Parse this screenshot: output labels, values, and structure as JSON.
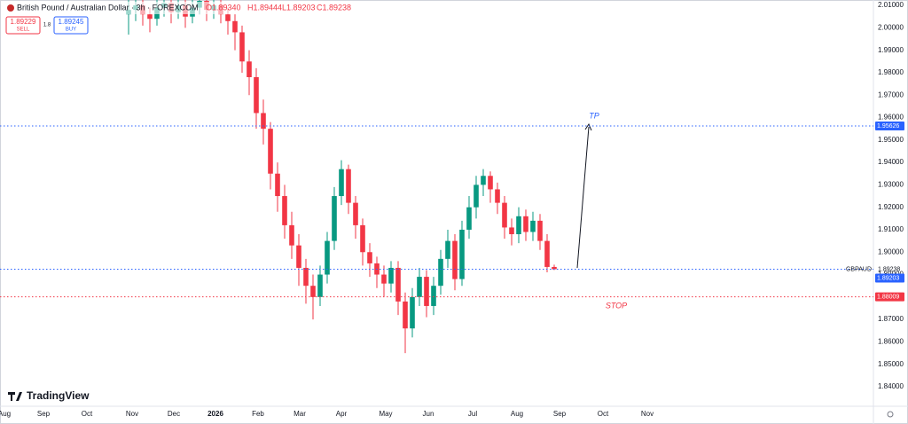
{
  "header": {
    "symbol": "British Pound / Australian Dollar · 3h · FOREXCOM",
    "ohlc": [
      "O1.89340",
      "H1.89444",
      "L1.89203",
      "C1.89238"
    ]
  },
  "trade_panel": {
    "sell_price": "1.89229",
    "sell_label": "SELL",
    "spread": "1.8",
    "buy_price": "1.89245",
    "buy_label": "BUY"
  },
  "branding": "TradingView",
  "chart_data": {
    "type": "candlestick",
    "categories": [
      null,
      null,
      null,
      null,
      null,
      null,
      null,
      null,
      null,
      null,
      null,
      null,
      null,
      null,
      null,
      null,
      null,
      null,
      null,
      null,
      null,
      null,
      null,
      null,
      null,
      null,
      null,
      null,
      null,
      null,
      null,
      null,
      null,
      null,
      null,
      null,
      null,
      null,
      null,
      null,
      null,
      null,
      null,
      null,
      null,
      null,
      null,
      null,
      null,
      null,
      null,
      null,
      null,
      null,
      null,
      null,
      null,
      null,
      null,
      null,
      null
    ],
    "open": [
      2.006,
      2.008,
      2.01,
      2.006,
      2.004,
      2.009,
      2.011,
      2.007,
      2.01,
      2.005,
      2.009,
      2.012,
      2.008,
      2.01,
      2.006,
      2.003,
      1.998,
      1.985,
      1.978,
      1.962,
      1.955,
      1.935,
      1.925,
      1.912,
      1.903,
      1.893,
      1.885,
      1.88,
      1.89,
      1.905,
      1.925,
      1.937,
      1.922,
      1.912,
      1.9,
      1.895,
      1.89,
      1.886,
      1.893,
      1.878,
      1.866,
      1.88,
      1.889,
      1.876,
      1.885,
      1.897,
      1.905,
      1.888,
      1.91,
      1.92,
      1.93,
      1.934,
      1.928,
      1.922,
      1.911,
      1.908,
      1.916,
      1.909,
      1.914,
      1.905,
      1.8934
    ],
    "high": [
      2.013,
      2.014,
      2.013,
      2.009,
      2.013,
      2.015,
      2.014,
      2.014,
      2.013,
      2.013,
      2.016,
      2.015,
      2.014,
      2.013,
      2.009,
      2.006,
      2.001,
      1.99,
      1.982,
      1.968,
      1.958,
      1.94,
      1.93,
      1.918,
      1.908,
      1.897,
      1.89,
      1.894,
      1.909,
      1.929,
      1.941,
      1.939,
      1.925,
      1.915,
      1.904,
      1.898,
      1.894,
      1.896,
      1.896,
      1.882,
      1.884,
      1.893,
      1.892,
      1.889,
      1.901,
      1.91,
      1.908,
      1.914,
      1.925,
      1.934,
      1.937,
      1.936,
      1.931,
      1.925,
      1.915,
      1.92,
      1.919,
      1.918,
      1.917,
      1.908,
      1.89444
    ],
    "low": [
      1.997,
      2.003,
      2.001,
      1.998,
      2.001,
      2.005,
      2.002,
      2.004,
      2.0,
      2.002,
      2.006,
      2.003,
      2.004,
      2.002,
      1.997,
      1.99,
      1.98,
      1.97,
      1.955,
      1.948,
      1.928,
      1.918,
      1.906,
      1.897,
      1.885,
      1.877,
      1.87,
      1.876,
      1.886,
      1.901,
      1.921,
      1.917,
      1.906,
      1.894,
      1.889,
      1.884,
      1.88,
      1.882,
      1.872,
      1.855,
      1.862,
      1.876,
      1.871,
      1.872,
      1.881,
      1.893,
      1.883,
      1.885,
      1.906,
      1.915,
      1.925,
      1.922,
      1.917,
      1.906,
      1.903,
      1.904,
      1.905,
      1.905,
      1.901,
      1.891,
      1.89203
    ],
    "close": [
      2.008,
      2.01,
      2.006,
      2.004,
      2.009,
      2.011,
      2.007,
      2.01,
      2.005,
      2.009,
      2.012,
      2.008,
      2.01,
      2.006,
      2.003,
      1.998,
      1.985,
      1.978,
      1.962,
      1.955,
      1.935,
      1.925,
      1.912,
      1.903,
      1.893,
      1.885,
      1.88,
      1.89,
      1.905,
      1.925,
      1.937,
      1.922,
      1.912,
      1.9,
      1.895,
      1.89,
      1.886,
      1.893,
      1.878,
      1.866,
      1.88,
      1.889,
      1.876,
      1.885,
      1.897,
      1.905,
      1.888,
      1.91,
      1.92,
      1.93,
      1.934,
      1.928,
      1.922,
      1.911,
      1.908,
      1.916,
      1.909,
      1.914,
      1.905,
      1.8934,
      1.89238
    ],
    "up_color": "#089981",
    "down_color": "#f23645",
    "xlim": [
      -18.125,
      105
    ],
    "xticks": [
      {
        "value": -17.5,
        "label": "Aug"
      },
      {
        "value": -12,
        "label": "Sep"
      },
      {
        "value": -5.875,
        "label": "Oct"
      },
      {
        "value": 0.5,
        "label": "Nov"
      },
      {
        "value": 6.375,
        "label": "Dec"
      },
      {
        "value": 12.25,
        "label": "2026"
      },
      {
        "value": 18.25,
        "label": "Feb"
      },
      {
        "value": 24.125,
        "label": "Mar"
      },
      {
        "value": 30,
        "label": "Apr"
      },
      {
        "value": 36.25,
        "label": "May"
      },
      {
        "value": 42.25,
        "label": "Jun"
      },
      {
        "value": 48.5,
        "label": "Jul"
      },
      {
        "value": 54.75,
        "label": "Aug"
      },
      {
        "value": 60.75,
        "label": "Sep"
      },
      {
        "value": 66.875,
        "label": "Oct"
      },
      {
        "value": 73.125,
        "label": "Nov"
      }
    ],
    "ylim": [
      1.8313,
      2.0124
    ],
    "yticks": [
      {
        "value": 1.84,
        "label": "1.84000"
      },
      {
        "value": 1.85,
        "label": "1.85000"
      },
      {
        "value": 1.86,
        "label": "1.86000"
      },
      {
        "value": 1.87,
        "label": "1.87000"
      },
      {
        "value": 1.88,
        "label": "1.88000"
      },
      {
        "value": 1.89,
        "label": "1.89000"
      },
      {
        "value": 1.9,
        "label": "1.90000"
      },
      {
        "value": 1.91,
        "label": "1.91000"
      },
      {
        "value": 1.92,
        "label": "1.92000"
      },
      {
        "value": 1.93,
        "label": "1.93000"
      },
      {
        "value": 1.94,
        "label": "1.94000"
      },
      {
        "value": 1.95,
        "label": "1.95000"
      },
      {
        "value": 1.96,
        "label": "1.96000"
      },
      {
        "value": 1.97,
        "label": "1.97000"
      },
      {
        "value": 1.98,
        "label": "1.98000"
      },
      {
        "value": 1.99,
        "label": "1.99000"
      },
      {
        "value": 2.0,
        "label": "2.00000"
      },
      {
        "value": 2.01,
        "label": "2.01000"
      }
    ],
    "price_lines": [
      {
        "value": 1.95626,
        "color": "#2962ff",
        "line": true,
        "tag": true
      },
      {
        "value": 1.89238,
        "name": "GBPAUD",
        "color": "#2962ff",
        "line": true,
        "tag": false
      },
      {
        "value": 1.89203,
        "color": "#2962ff",
        "line": false,
        "tag": true
      },
      {
        "value": 1.88009,
        "color": "#f23645",
        "line": true,
        "tag": true
      }
    ],
    "annotations": [
      {
        "text": "TP",
        "color": "#2962ff"
      },
      {
        "text": "STOP",
        "color": "#f23645"
      }
    ]
  }
}
